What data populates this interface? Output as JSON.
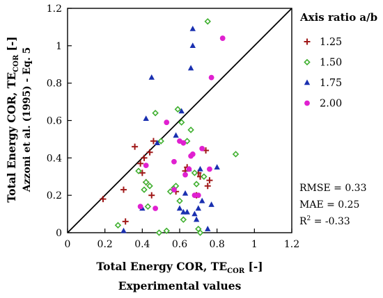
{
  "chart_data": {
    "type": "scatter",
    "xlabel": "Total Energy COR, TE",
    "xlabel_sub": "COR",
    "xlabel_unit": " [-]",
    "xlabel2": "Experimental values",
    "ylabel": "Total Energy COR, TE",
    "ylabel_sub": "COR",
    "ylabel_unit": " [-]",
    "ylabel2": "Azzoni et al. (1995) - Eq. 5",
    "xlim": [
      0,
      1.2
    ],
    "ylim": [
      0,
      1.2
    ],
    "xticks": [
      "0",
      "0.2",
      "0.4",
      "0.6",
      "0.8",
      "1",
      "1.2"
    ],
    "yticks": [
      "0",
      "0.2",
      "0.4",
      "0.6",
      "0.8",
      "1",
      "1.2"
    ],
    "reference_line": "y = x",
    "grid": false,
    "legend_title": "Axis ratio a/b",
    "legend_position": "right",
    "series": [
      {
        "name": "1.25",
        "marker": "plus",
        "color": "#a01818",
        "points": [
          [
            0.19,
            0.18
          ],
          [
            0.3,
            0.23
          ],
          [
            0.31,
            0.06
          ],
          [
            0.36,
            0.46
          ],
          [
            0.39,
            0.37
          ],
          [
            0.4,
            0.32
          ],
          [
            0.41,
            0.4
          ],
          [
            0.42,
            0.27
          ],
          [
            0.44,
            0.43
          ],
          [
            0.45,
            0.2
          ],
          [
            0.46,
            0.49
          ],
          [
            0.58,
            0.22
          ],
          [
            0.63,
            0.33
          ],
          [
            0.64,
            0.35
          ],
          [
            0.69,
            0.2
          ],
          [
            0.7,
            0.32
          ],
          [
            0.71,
            0.3
          ],
          [
            0.74,
            0.44
          ],
          [
            0.75,
            0.25
          ],
          [
            0.76,
            0.28
          ]
        ]
      },
      {
        "name": "1.50",
        "marker": "diamond",
        "color": "#40b030",
        "points": [
          [
            0.27,
            0.04
          ],
          [
            0.38,
            0.33
          ],
          [
            0.41,
            0.23
          ],
          [
            0.42,
            0.27
          ],
          [
            0.43,
            0.14
          ],
          [
            0.44,
            0.25
          ],
          [
            0.47,
            0.64
          ],
          [
            0.49,
            0.0
          ],
          [
            0.5,
            0.49
          ],
          [
            0.53,
            0.01
          ],
          [
            0.55,
            0.22
          ],
          [
            0.57,
            0.24
          ],
          [
            0.58,
            0.25
          ],
          [
            0.59,
            0.66
          ],
          [
            0.6,
            0.17
          ],
          [
            0.61,
            0.59
          ],
          [
            0.62,
            0.07
          ],
          [
            0.64,
            0.49
          ],
          [
            0.66,
            0.55
          ],
          [
            0.68,
            0.32
          ],
          [
            0.69,
            0.26
          ],
          [
            0.7,
            0.02
          ],
          [
            0.71,
            0.0
          ],
          [
            0.73,
            0.3
          ],
          [
            0.75,
            1.13
          ],
          [
            0.9,
            0.42
          ]
        ]
      },
      {
        "name": "1.75",
        "marker": "triangle",
        "color": "#1a30b0",
        "points": [
          [
            0.3,
            0.01
          ],
          [
            0.4,
            0.13
          ],
          [
            0.42,
            0.61
          ],
          [
            0.45,
            0.83
          ],
          [
            0.48,
            0.48
          ],
          [
            0.58,
            0.52
          ],
          [
            0.6,
            0.13
          ],
          [
            0.61,
            0.65
          ],
          [
            0.62,
            0.11
          ],
          [
            0.63,
            0.21
          ],
          [
            0.64,
            0.11
          ],
          [
            0.65,
            0.34
          ],
          [
            0.66,
            0.88
          ],
          [
            0.67,
            1.0
          ],
          [
            0.67,
            1.09
          ],
          [
            0.68,
            0.1
          ],
          [
            0.69,
            0.07
          ],
          [
            0.7,
            0.13
          ],
          [
            0.71,
            0.34
          ],
          [
            0.72,
            0.17
          ],
          [
            0.75,
            0.02
          ],
          [
            0.77,
            0.15
          ],
          [
            0.8,
            0.35
          ]
        ]
      },
      {
        "name": "2.00",
        "marker": "circle",
        "color": "#e020d0",
        "points": [
          [
            0.39,
            0.14
          ],
          [
            0.42,
            0.36
          ],
          [
            0.47,
            0.13
          ],
          [
            0.53,
            0.59
          ],
          [
            0.57,
            0.23
          ],
          [
            0.57,
            0.38
          ],
          [
            0.6,
            0.49
          ],
          [
            0.62,
            0.48
          ],
          [
            0.63,
            0.31
          ],
          [
            0.65,
            0.34
          ],
          [
            0.66,
            0.41
          ],
          [
            0.67,
            0.42
          ],
          [
            0.68,
            0.2
          ],
          [
            0.7,
            0.2
          ],
          [
            0.72,
            0.45
          ],
          [
            0.76,
            0.34
          ],
          [
            0.77,
            0.83
          ],
          [
            0.83,
            1.04
          ]
        ]
      }
    ],
    "annotations": [
      {
        "label": "RMSE = ",
        "value": "0.33"
      },
      {
        "label": "MAE = ",
        "value": "0.25"
      },
      {
        "label": "R",
        "sup": "2",
        "eq": " = ",
        "value": "-0.33"
      }
    ]
  }
}
